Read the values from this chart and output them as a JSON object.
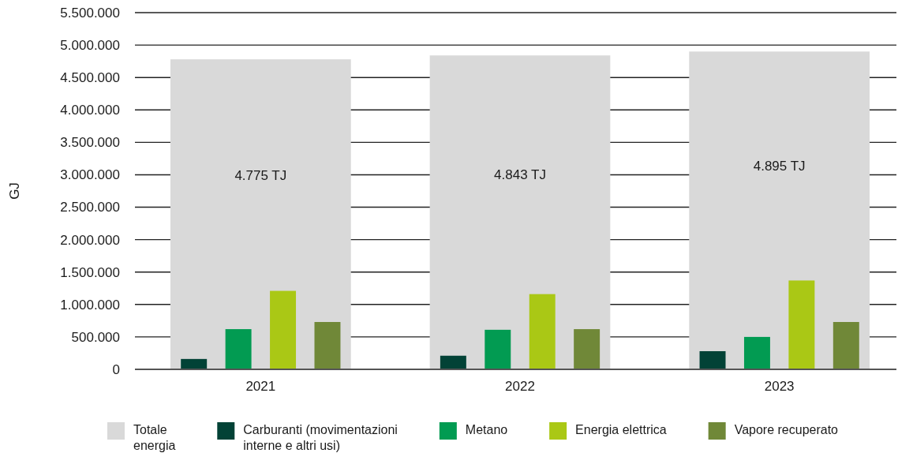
{
  "chart_data": {
    "type": "bar",
    "categories": [
      "2021",
      "2022",
      "2023"
    ],
    "ylabel": "GJ",
    "ylim": [
      0,
      5500000
    ],
    "yticks": [
      0,
      {
        "value": 500000,
        "label": "500.000"
      },
      {
        "value": 1000000,
        "label": "1.000.000"
      },
      {
        "value": 1500000,
        "label": "1.500.000"
      },
      {
        "value": 2000000,
        "label": "2.000.000"
      },
      {
        "value": 2500000,
        "label": "2.500.000"
      },
      {
        "value": 3000000,
        "label": "3.000.000"
      },
      {
        "value": 3500000,
        "label": "3.500.000"
      },
      {
        "value": 4000000,
        "label": "4.000.000"
      },
      {
        "value": 4500000,
        "label": "4.500.000"
      },
      {
        "value": 5000000,
        "label": "5.000.000"
      },
      {
        "value": 5500000,
        "label": "5.500.000"
      }
    ],
    "grid": "y",
    "legend": "bottom",
    "annotations": [
      "4.775 TJ",
      "4.843 TJ",
      "4.895 TJ"
    ],
    "series": [
      {
        "name": "Totale energia",
        "color": "#d9d9d9",
        "values": [
          4780000,
          4840000,
          4900000
        ]
      },
      {
        "name": "Carburanti (movimentazioni interne e altri usi)",
        "color": "#024236",
        "values": [
          160000,
          210000,
          280000
        ]
      },
      {
        "name": "Metano",
        "color": "#029b52",
        "values": [
          620000,
          610000,
          500000
        ]
      },
      {
        "name": "Energia elettrica",
        "color": "#aac815",
        "values": [
          1210000,
          1160000,
          1370000
        ]
      },
      {
        "name": "Vapore recuperato",
        "color": "#708838",
        "values": [
          730000,
          620000,
          730000
        ]
      }
    ]
  }
}
